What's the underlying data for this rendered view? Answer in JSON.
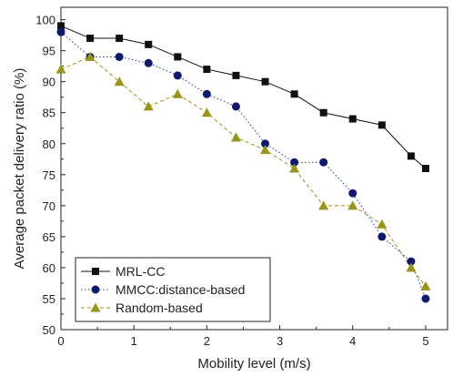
{
  "chart_data": {
    "type": "line",
    "title": "",
    "xlabel": "Mobility level (m/s)",
    "ylabel": "Average packet delivery ratio (%)",
    "xlim": [
      0,
      5.3
    ],
    "ylim": [
      50,
      102
    ],
    "xticks": [
      0,
      1,
      2,
      3,
      4,
      5
    ],
    "yticks": [
      50,
      55,
      60,
      65,
      70,
      75,
      80,
      85,
      90,
      95,
      100
    ],
    "grid": false,
    "legend_position": "bottom-left",
    "series": [
      {
        "name": "MRL-CC",
        "marker": "square",
        "line_style": "solid",
        "color": "#111111",
        "marker_color": "#111111",
        "x": [
          0,
          0.4,
          0.8,
          1.2,
          1.6,
          2.0,
          2.4,
          2.8,
          3.2,
          3.6,
          4.0,
          4.4,
          4.8,
          5.0
        ],
        "y": [
          99,
          97,
          97,
          96,
          94,
          92,
          91,
          90,
          88,
          85,
          84,
          83,
          78,
          76
        ]
      },
      {
        "name": "MMCC:distance-based",
        "marker": "circle",
        "line_style": "dotted",
        "color": "#1a3aa8",
        "marker_color": "#0d1a6e",
        "x": [
          0,
          0.4,
          0.8,
          1.2,
          1.6,
          2.0,
          2.4,
          2.8,
          3.2,
          3.6,
          4.0,
          4.4,
          4.8,
          5.0
        ],
        "y": [
          98,
          94,
          94,
          93,
          91,
          88,
          86,
          80,
          77,
          77,
          72,
          65,
          61,
          55
        ]
      },
      {
        "name": "Random-based",
        "marker": "triangle",
        "line_style": "dashed",
        "color": "#9a9418",
        "marker_color": "#9a9418",
        "x": [
          0,
          0.4,
          0.8,
          1.2,
          1.6,
          2.0,
          2.4,
          2.8,
          3.2,
          3.6,
          4.0,
          4.4,
          4.8,
          5.0
        ],
        "y": [
          92,
          94,
          90,
          86,
          88,
          85,
          81,
          79,
          76,
          70,
          70,
          67,
          60,
          57
        ]
      }
    ]
  }
}
